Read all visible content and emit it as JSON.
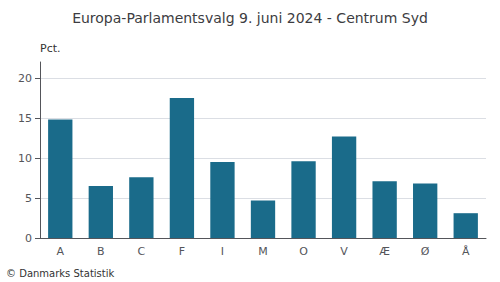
{
  "chart_data": {
    "type": "bar",
    "title": "Europa-Parlamentsvalg 9. juni 2024 - Centrum Syd",
    "categories": [
      "A",
      "B",
      "C",
      "F",
      "I",
      "M",
      "O",
      "V",
      "Æ",
      "Ø",
      "Å"
    ],
    "values": [
      14.8,
      6.5,
      7.6,
      17.5,
      9.5,
      4.7,
      9.6,
      12.7,
      7.1,
      6.8,
      3.1
    ],
    "color": "#1a6b8a",
    "ylabel": "Pct.",
    "annotations": [
      "© Danmarks Statistik"
    ],
    "ylim": [
      0,
      22
    ],
    "yticks": [
      0,
      5,
      10,
      15,
      20
    ],
    "grid": true
  }
}
